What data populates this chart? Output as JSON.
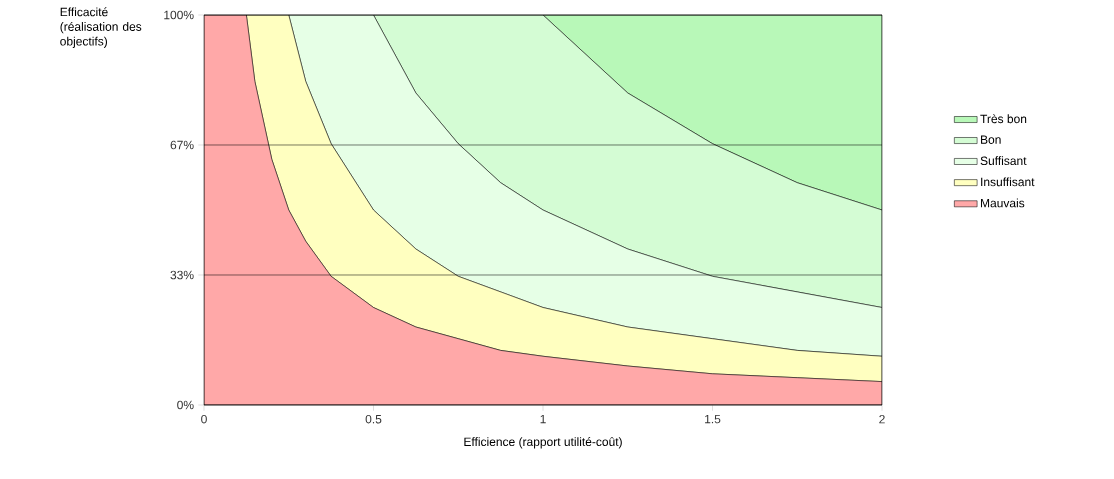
{
  "chart_data": {
    "type": "area",
    "stacked": true,
    "xlabel": "Efficience (rapport utilité-coût)",
    "ylabel": "Efficacité (réalisation des objectifs)",
    "x": [
      0,
      0.125,
      0.15,
      0.2,
      0.25,
      0.3,
      0.375,
      0.5,
      0.625,
      0.75,
      0.875,
      1,
      1.25,
      1.5,
      1.75,
      2
    ],
    "series": [
      {
        "name": "Mauvais",
        "color": "#ffa8a8",
        "values": [
          100,
          100,
          83,
          63,
          50,
          42,
          33,
          25,
          20,
          17,
          14,
          12.5,
          10,
          8,
          7,
          6
        ]
      },
      {
        "name": "Insuffisant",
        "color": "#ffffc0",
        "values": [
          0,
          0,
          17,
          37,
          50,
          41,
          34,
          25,
          20,
          16,
          15,
          12.5,
          10,
          9,
          7,
          6.5
        ]
      },
      {
        "name": "Suffisant",
        "color": "#e6ffe6",
        "values": [
          0,
          0,
          0,
          0,
          0,
          17,
          33,
          50,
          40,
          34,
          28,
          25,
          20,
          16,
          15,
          12.5
        ]
      },
      {
        "name": "Bon",
        "color": "#d4fcd4",
        "values": [
          0,
          0,
          0,
          0,
          0,
          0,
          0,
          0,
          20,
          33,
          43,
          50,
          40,
          34,
          28,
          25
        ]
      },
      {
        "name": "Très bon",
        "color": "#b8f8b8",
        "values": [
          0,
          0,
          0,
          0,
          0,
          0,
          0,
          0,
          0,
          0,
          0,
          0,
          20,
          33,
          43,
          50
        ]
      }
    ],
    "xlim": [
      0,
      2
    ],
    "xticks": [
      0,
      0.5,
      1,
      1.5,
      2
    ],
    "ylim": [
      0,
      100
    ],
    "yticks": [
      {
        "value": 0,
        "label": "0%"
      },
      {
        "value": 33.333,
        "label": "33%"
      },
      {
        "value": 66.667,
        "label": "67%"
      },
      {
        "value": 100,
        "label": "100%"
      }
    ],
    "grid": "y",
    "legend": "right"
  }
}
